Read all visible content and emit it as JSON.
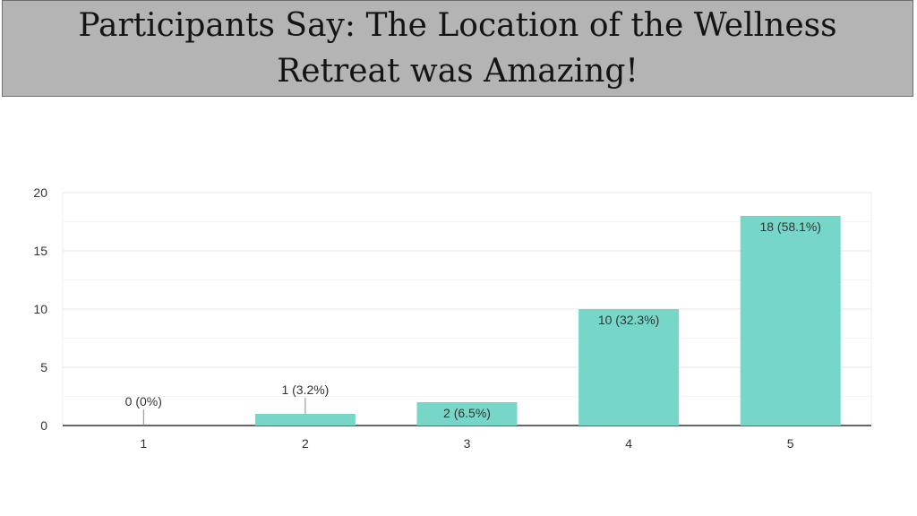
{
  "title": "Participants Say: The Location of the Wellness Retreat was Amazing!",
  "chart_data": {
    "type": "bar",
    "title": "",
    "xlabel": "",
    "ylabel": "",
    "categories": [
      "1",
      "2",
      "3",
      "4",
      "5"
    ],
    "values": [
      0,
      1,
      2,
      10,
      18
    ],
    "data_labels": [
      "0 (0%)",
      "1 (3.2%)",
      "2 (6.5%)",
      "10 (32.3%)",
      "18 (58.1%)"
    ],
    "ylim": [
      0,
      20
    ],
    "yticks": [
      0,
      5,
      10,
      15,
      20
    ],
    "grid": true,
    "legend": "none",
    "bar_color": "#76d7c9"
  }
}
